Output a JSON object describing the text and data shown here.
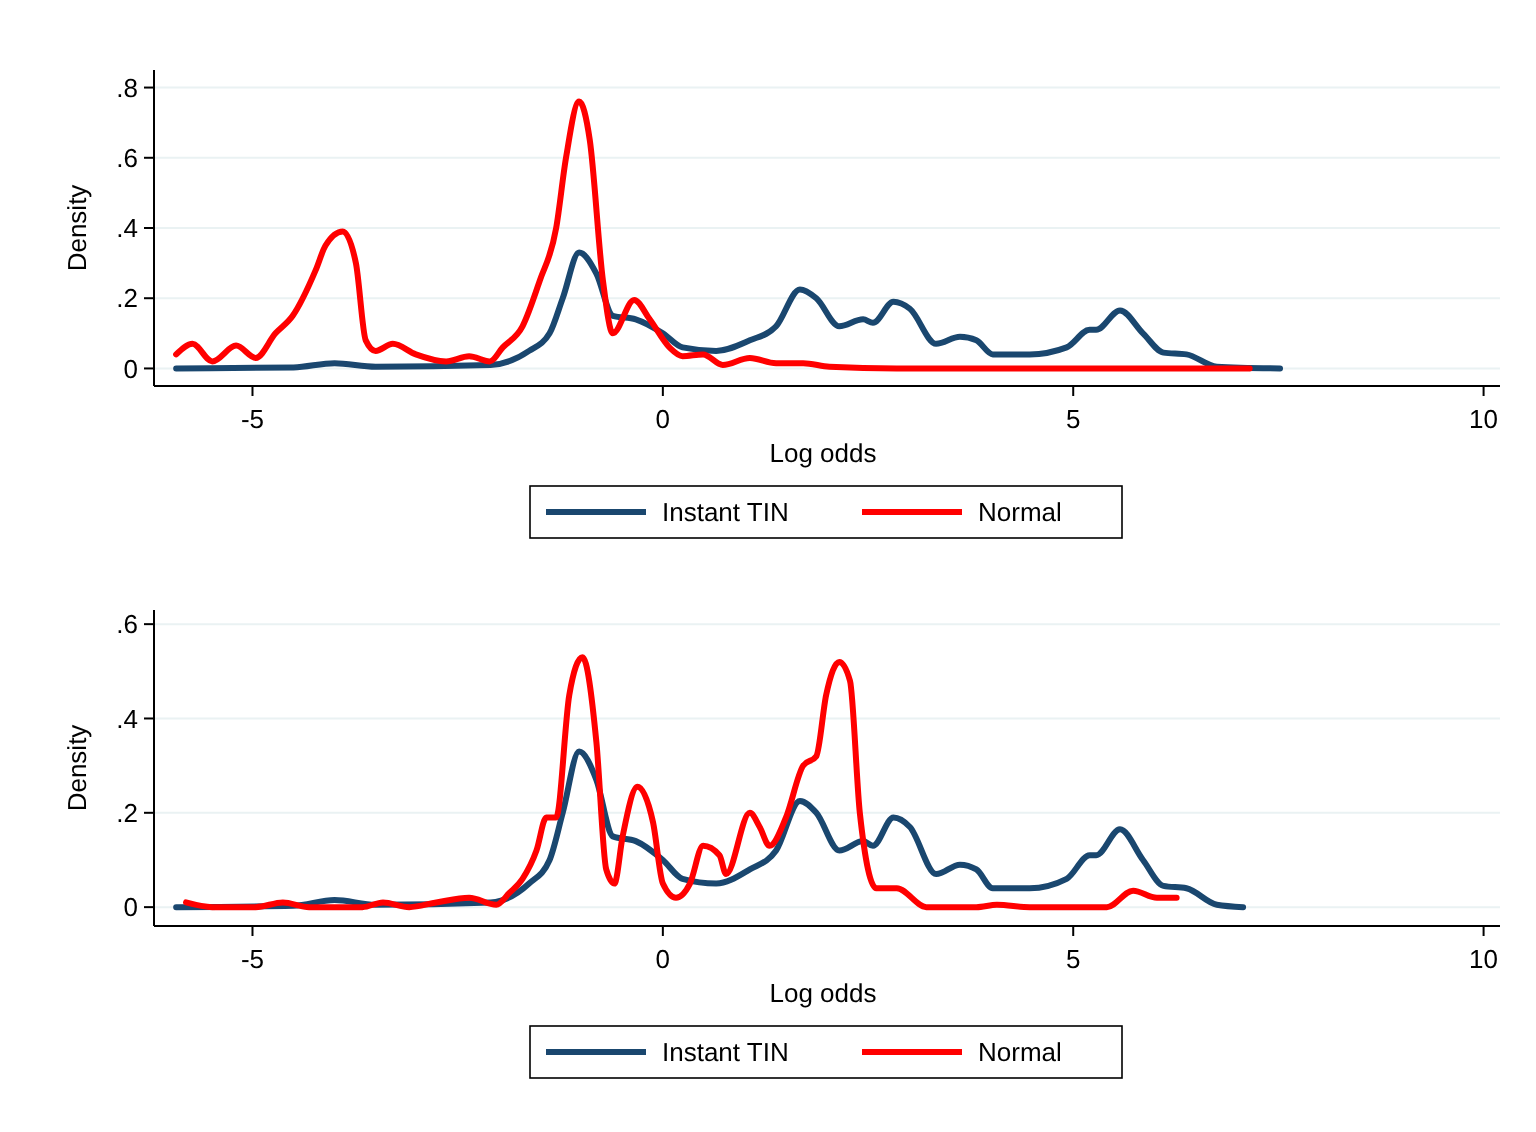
{
  "chart_data": [
    {
      "type": "line",
      "xlabel": "Log odds",
      "ylabel": "Density",
      "xlim": [
        -6.2,
        10.2
      ],
      "xticks": [
        {
          "value": -5,
          "label": "-5"
        },
        0,
        5,
        10
      ],
      "ylim": [
        -0.05,
        0.85
      ],
      "yticks": [
        0,
        {
          "value": 0.2,
          "label": ".2"
        },
        {
          "value": 0.4,
          "label": ".4"
        },
        {
          "value": 0.6,
          "label": ".6"
        },
        {
          "value": 0.8,
          "label": ".8"
        }
      ],
      "grid": "y",
      "legend": "bottom",
      "series": [
        {
          "name": "Instant TIN",
          "color": "#1a476f",
          "x": [
            -5.93,
            -4.5,
            -4,
            -3.5,
            -2.1,
            -1.63,
            -1.38,
            -1.22,
            -1.02,
            -0.81,
            -0.61,
            -0.33,
            0,
            0.24,
            0.65,
            1.06,
            1.38,
            1.67,
            1.87,
            2.15,
            2.44,
            2.56,
            2.81,
            3.01,
            3.33,
            3.62,
            3.82,
            4.02,
            4.47,
            4.92,
            5.2,
            5.28,
            5.57,
            5.85,
            6.1,
            6.38,
            6.75,
            7.52
          ],
          "values": [
            0,
            0.003,
            0.015,
            0.005,
            0.01,
            0.05,
            0.1,
            0.2,
            0.33,
            0.27,
            0.15,
            0.14,
            0.1,
            0.06,
            0.05,
            0.08,
            0.12,
            0.225,
            0.2,
            0.12,
            0.14,
            0.13,
            0.19,
            0.17,
            0.07,
            0.09,
            0.08,
            0.04,
            0.04,
            0.06,
            0.11,
            0.11,
            0.165,
            0.1,
            0.045,
            0.04,
            0.005,
            0
          ]
        },
        {
          "name": "Normal",
          "color": "#ff0000",
          "x": [
            -5.93,
            -5.73,
            -5.49,
            -5.2,
            -4.96,
            -4.72,
            -4.51,
            -4.23,
            -4.11,
            -3.9,
            -3.74,
            -3.62,
            -3.5,
            -3.29,
            -3.01,
            -2.64,
            -2.36,
            -2.11,
            -1.95,
            -1.71,
            -1.5,
            -1.3,
            -1.18,
            -1.02,
            -0.89,
            -0.73,
            -0.61,
            -0.35,
            -0.16,
            0.08,
            0.24,
            0.49,
            0.73,
            1.06,
            1.38,
            1.71,
            2.03,
            2.85,
            7.15
          ],
          "values": [
            0.04,
            0.07,
            0.02,
            0.065,
            0.03,
            0.1,
            0.15,
            0.28,
            0.35,
            0.39,
            0.3,
            0.08,
            0.05,
            0.07,
            0.04,
            0.02,
            0.035,
            0.02,
            0.06,
            0.12,
            0.25,
            0.4,
            0.6,
            0.76,
            0.65,
            0.25,
            0.1,
            0.195,
            0.14,
            0.06,
            0.035,
            0.04,
            0.01,
            0.03,
            0.015,
            0.015,
            0.005,
            0,
            0
          ]
        }
      ]
    },
    {
      "type": "line",
      "xlabel": "Log odds",
      "ylabel": "Density",
      "xlim": [
        -6.2,
        10.2
      ],
      "xticks": [
        {
          "value": -5,
          "label": "-5"
        },
        0,
        5,
        10
      ],
      "ylim": [
        -0.04,
        0.63
      ],
      "yticks": [
        0,
        {
          "value": 0.2,
          "label": ".2"
        },
        {
          "value": 0.4,
          "label": ".4"
        },
        {
          "value": 0.6,
          "label": ".6"
        }
      ],
      "grid": "y",
      "legend": "bottom",
      "series": [
        {
          "name": "Instant TIN",
          "color": "#1a476f",
          "x": [
            -5.93,
            -4.5,
            -4,
            -3.5,
            -2.1,
            -1.63,
            -1.38,
            -1.22,
            -1.02,
            -0.81,
            -0.61,
            -0.33,
            0,
            0.24,
            0.65,
            1.06,
            1.38,
            1.67,
            1.87,
            2.15,
            2.44,
            2.56,
            2.81,
            3.01,
            3.33,
            3.62,
            3.82,
            4.02,
            4.47,
            4.92,
            5.2,
            5.28,
            5.57,
            5.85,
            6.1,
            6.38,
            6.75,
            7.07
          ],
          "values": [
            0,
            0.003,
            0.015,
            0.005,
            0.01,
            0.05,
            0.1,
            0.2,
            0.33,
            0.27,
            0.15,
            0.14,
            0.1,
            0.06,
            0.05,
            0.08,
            0.12,
            0.225,
            0.2,
            0.12,
            0.14,
            0.13,
            0.19,
            0.17,
            0.07,
            0.09,
            0.08,
            0.04,
            0.04,
            0.06,
            0.11,
            0.11,
            0.165,
            0.1,
            0.045,
            0.04,
            0.005,
            0
          ]
        },
        {
          "name": "Normal",
          "color": "#ff0000",
          "x": [
            -5.81,
            -5.49,
            -4.96,
            -4.63,
            -4.31,
            -3.66,
            -3.41,
            -3.09,
            -2.76,
            -2.36,
            -2.03,
            -1.87,
            -1.71,
            -1.54,
            -1.42,
            -1.3,
            -1.14,
            -0.98,
            -0.81,
            -0.69,
            -0.59,
            -0.49,
            -0.31,
            -0.12,
            0,
            0.16,
            0.33,
            0.49,
            0.69,
            0.77,
            1.06,
            1.18,
            1.3,
            1.5,
            1.71,
            1.87,
            1.99,
            2.15,
            2.28,
            2.4,
            2.6,
            2.85,
            3.21,
            3.82,
            4.07,
            4.47,
            5.41,
            5.73,
            6.02,
            6.26
          ],
          "values": [
            0.01,
            0,
            0,
            0.01,
            0,
            0,
            0.01,
            0,
            0.01,
            0.02,
            0.005,
            0.03,
            0.06,
            0.12,
            0.19,
            0.19,
            0.45,
            0.53,
            0.35,
            0.08,
            0.05,
            0.15,
            0.255,
            0.18,
            0.05,
            0.02,
            0.05,
            0.13,
            0.11,
            0.07,
            0.2,
            0.17,
            0.13,
            0.19,
            0.3,
            0.32,
            0.45,
            0.52,
            0.48,
            0.2,
            0.04,
            0.04,
            0,
            0,
            0.005,
            0,
            0,
            0.035,
            0.02,
            0.02
          ]
        }
      ]
    }
  ]
}
